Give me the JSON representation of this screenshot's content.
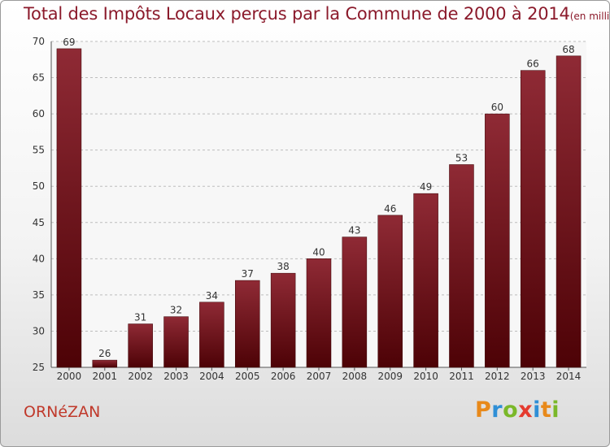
{
  "header": {
    "title": "Total des Impôts Locaux perçus par la Commune de 2000 à 2014",
    "unit": "(en milliers d'€)"
  },
  "footer": {
    "commune": "ORNéZAN",
    "brand_letters": [
      "P",
      "r",
      "o",
      "x",
      "i",
      "t",
      "i"
    ],
    "brand_colors": [
      "#e8891a",
      "#2f8fd6",
      "#7ab829",
      "#e53b2f",
      "#2f8fd6",
      "#e8891a",
      "#7ab829"
    ]
  },
  "colors": {
    "bar_top": "#8f2a35",
    "bar_bottom": "#4d0206",
    "title": "#8b1a2b",
    "grid": "#bdbdbd"
  },
  "chart_data": {
    "type": "bar",
    "title": "Total des Impôts Locaux perçus par la Commune de 2000 à 2014",
    "ylabel": "en milliers d'€",
    "xlabel": "",
    "categories": [
      "2000",
      "2001",
      "2002",
      "2003",
      "2004",
      "2005",
      "2006",
      "2007",
      "2008",
      "2009",
      "2010",
      "2011",
      "2012",
      "2013",
      "2014"
    ],
    "values": [
      69,
      26,
      31,
      32,
      34,
      37,
      38,
      40,
      43,
      46,
      49,
      53,
      60,
      66,
      68
    ],
    "ylim": [
      25,
      70
    ],
    "yticks": [
      25,
      30,
      35,
      40,
      45,
      50,
      55,
      60,
      65,
      70
    ],
    "grid": true
  }
}
